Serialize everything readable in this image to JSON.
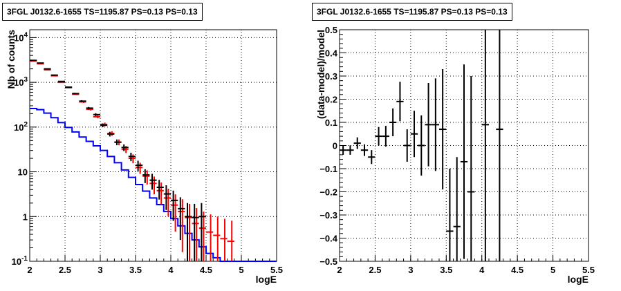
{
  "chart_data": [
    {
      "type": "line",
      "title": "3FGL J0132.6-1655 TS=1195.87 PS=0.13 PS=0.13",
      "xlabel": "logE",
      "ylabel": "Nb of counts",
      "xlim": [
        2,
        5.5
      ],
      "ylim": [
        0.1,
        15000
      ],
      "yscale": "log",
      "grid": true,
      "x_ticks": [
        "2",
        "2.5",
        "3",
        "3.5",
        "4",
        "4.5",
        "5",
        "5.5"
      ],
      "y_ticks": [
        "10^{-1}",
        "1",
        "10",
        "10^{2}",
        "10^{3}",
        "10^{4}"
      ],
      "x_bin_edges": [
        2.0,
        2.1,
        2.2,
        2.3,
        2.4,
        2.5,
        2.6,
        2.7,
        2.8,
        2.9,
        3.0,
        3.1,
        3.2,
        3.3,
        3.4,
        3.5,
        3.6,
        3.7,
        3.8,
        3.9,
        4.0,
        4.1,
        4.2,
        4.3,
        4.4,
        4.5,
        4.6,
        4.7,
        4.8,
        4.9,
        5.0,
        5.1,
        5.2,
        5.3,
        5.4,
        5.5
      ],
      "series": [
        {
          "kind": "step",
          "color": "#0000ff",
          "values": [
            260,
            245,
            205,
            162,
            126,
            98,
            78,
            60,
            48,
            38,
            30,
            22,
            16,
            11,
            7.5,
            5.2,
            3.7,
            2.6,
            1.85,
            1.3,
            0.9,
            0.62,
            0.42,
            0.3,
            0.21,
            0.15,
            0.12,
            0.1,
            0.1,
            0.1,
            0.1,
            0.1,
            0.1,
            0.1,
            0.1
          ]
        },
        {
          "kind": "points",
          "color": "#000000",
          "x": [
            2.05,
            2.15,
            2.25,
            2.35,
            2.45,
            2.55,
            2.65,
            2.75,
            2.85,
            2.95,
            3.05,
            3.15,
            3.25,
            3.35,
            3.45,
            3.55,
            3.65,
            3.75,
            3.85,
            3.95,
            4.05,
            4.15,
            4.25,
            4.35,
            4.45
          ],
          "y": [
            3100,
            2700,
            2000,
            1450,
            1050,
            780,
            560,
            380,
            265,
            190,
            110,
            70,
            46,
            35,
            22,
            14,
            8.5,
            6.5,
            4.5,
            3.2,
            2.3,
            1.5,
            1.0,
            0.95,
            1.0
          ],
          "err": [
            56,
            52,
            45,
            38,
            32,
            28,
            24,
            19,
            16,
            14,
            10.5,
            8.4,
            6.8,
            5.9,
            4.7,
            3.7,
            2.9,
            2.5,
            2.1,
            1.8,
            1.5,
            1.2,
            1.0,
            0.97,
            1.0
          ]
        },
        {
          "kind": "points",
          "color": "#ff0000",
          "x": [
            2.05,
            2.15,
            2.25,
            2.35,
            2.45,
            2.55,
            2.65,
            2.75,
            2.85,
            2.95,
            3.05,
            3.15,
            3.25,
            3.35,
            3.45,
            3.55,
            3.65,
            3.75,
            3.85,
            3.95,
            4.05,
            4.15,
            4.25,
            4.35,
            4.45,
            4.55,
            4.65,
            4.75,
            4.85
          ],
          "y": [
            3000,
            2600,
            1900,
            1400,
            1000,
            760,
            540,
            365,
            250,
            170,
            115,
            72,
            46,
            32,
            20,
            12.5,
            8,
            5.5,
            3.8,
            2.6,
            1.8,
            1.3,
            0.95,
            0.7,
            0.55,
            0.45,
            0.38,
            0.32,
            0.28
          ],
          "err": [
            55,
            51,
            44,
            37,
            32,
            27,
            23,
            19,
            16,
            13,
            10.7,
            8.5,
            6.8,
            5.7,
            4.5,
            3.5,
            2.8,
            2.35,
            1.95,
            1.6,
            1.34,
            1.14,
            0.97,
            0.84,
            0.74,
            0.67,
            0.62,
            0.57,
            0.53
          ]
        }
      ]
    },
    {
      "type": "scatter",
      "title": "3FGL J0132.6-1655 TS=1195.87 PS=0.13 PS=0.13",
      "xlabel": "logE",
      "ylabel": "(data-model)/model",
      "xlim": [
        2,
        5.5
      ],
      "ylim": [
        -0.5,
        0.5
      ],
      "grid": true,
      "x_ticks": [
        "2",
        "2.5",
        "3",
        "3.5",
        "4",
        "4.5",
        "5",
        "5.5"
      ],
      "y_ticks": [
        "−0.5",
        "−0.4",
        "−0.3",
        "−0.2",
        "−0.1",
        "0",
        "0.1",
        "0.2",
        "0.3",
        "0.4",
        "0.5"
      ],
      "series": [
        {
          "color": "#000000",
          "x": [
            2.05,
            2.15,
            2.25,
            2.35,
            2.45,
            2.55,
            2.65,
            2.75,
            2.85,
            2.95,
            3.05,
            3.15,
            3.25,
            3.35,
            3.45,
            3.55,
            3.65,
            3.75,
            3.85,
            4.05,
            4.25
          ],
          "y": [
            -0.02,
            -0.02,
            0.01,
            -0.02,
            -0.05,
            0.04,
            0.04,
            0.1,
            0.19,
            0.0,
            0.05,
            0.0,
            0.09,
            0.09,
            0.07,
            -0.37,
            -0.35,
            -0.07,
            -0.2,
            0.09,
            0.07
          ],
          "err": [
            0.02,
            0.02,
            0.025,
            0.025,
            0.03,
            0.04,
            0.045,
            0.06,
            0.085,
            0.07,
            0.1,
            0.13,
            0.18,
            0.2,
            0.26,
            0.27,
            0.3,
            0.42,
            0.5,
            0.8,
            1.0
          ]
        }
      ]
    }
  ]
}
